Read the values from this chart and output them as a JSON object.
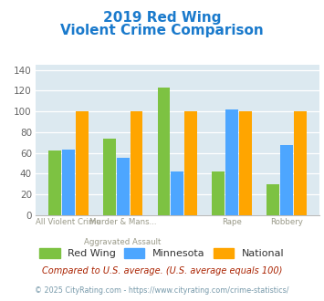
{
  "title_line1": "2019 Red Wing",
  "title_line2": "Violent Crime Comparison",
  "series": {
    "Red Wing": [
      62,
      74,
      123,
      42,
      30
    ],
    "Minnesota": [
      63,
      55,
      42,
      102,
      68
    ],
    "National": [
      100,
      100,
      100,
      100,
      100
    ]
  },
  "colors": {
    "Red Wing": "#7dc242",
    "Minnesota": "#4da6ff",
    "National": "#ffa500"
  },
  "ylim": [
    0,
    145
  ],
  "yticks": [
    0,
    20,
    40,
    60,
    80,
    100,
    120,
    140
  ],
  "title_color": "#1a7acc",
  "footnote1": "Compared to U.S. average. (U.S. average equals 100)",
  "footnote2": "© 2025 CityRating.com - https://www.cityrating.com/crime-statistics/",
  "footnote1_color": "#aa2200",
  "footnote2_color": "#7799aa",
  "bg_color": "#dce9f0",
  "fig_bg": "#ffffff",
  "bar_width": 0.25
}
